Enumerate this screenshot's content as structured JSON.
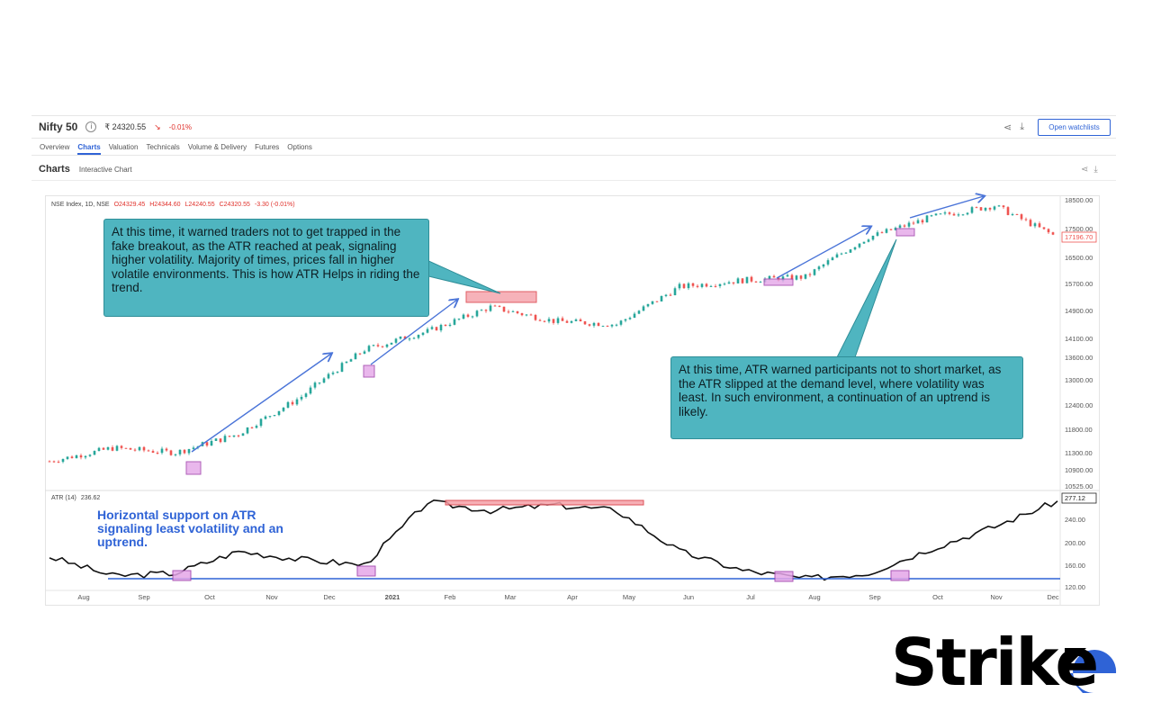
{
  "header": {
    "title": "Nifty 50",
    "price": "₹ 24320.55",
    "change": "-0.01%",
    "watchlist_button": "Open watchlists"
  },
  "tabs": [
    "Overview",
    "Charts",
    "Valuation",
    "Technicals",
    "Volume & Delivery",
    "Futures",
    "Options"
  ],
  "active_tab": "Charts",
  "subheader": {
    "title": "Charts",
    "chip": "Interactive Chart"
  },
  "ohlc": {
    "symbol": "NSE Index, 1D, NSE",
    "open": "O24329.45",
    "high": "H24344.60",
    "low": "L24240.55",
    "close": "C24320.55",
    "change": "-3.30 (-0.01%)"
  },
  "atr_label": {
    "name": "ATR (14)",
    "value": "236.62"
  },
  "callouts": {
    "top": "At this time, it warned traders not to get trapped in the fake breakout, as the ATR reached at peak, signaling higher volatility. Majority of times, prices fall in higher volatile environments. This is how ATR Helps in riding the trend.",
    "bottom": "At this time, ATR warned participants not to short market, as the ATR slipped at the demand level, where volatility was least. In such environment, a continuation of an uptrend is likely."
  },
  "note": "Horizontal support on ATR signaling least volatility and an uptrend.",
  "brand": "Strike",
  "colors": {
    "up": "#26a69a",
    "down": "#ef5350",
    "atr_line": "#111111",
    "support_line": "#2f63d6",
    "callout_bg": "#4fb5c0",
    "box_pink": "#e4a6e8",
    "box_red": "#f5a0a8",
    "arrow": "#4a74d8",
    "brand_accent": "#2f63d6"
  },
  "chart_data": [
    {
      "type": "line",
      "x": [
        "Aug",
        "Sep",
        "Oct",
        "Nov",
        "Dec",
        "2021",
        "Feb",
        "Mar",
        "Apr",
        "May",
        "Jun",
        "Jul",
        "Aug",
        "Sep",
        "Oct",
        "Nov",
        "Dec"
      ],
      "series": [
        {
          "values": [
            11100,
            11400,
            11300,
            11700,
            12600,
            13800,
            14300,
            15000,
            14600,
            14500,
            15600,
            15800,
            15900,
            17200,
            17900,
            18300,
            17196.7
          ]
        }
      ],
      "y_ticks": [
        "18500.00",
        "17500.00",
        "16500.00",
        "15700.00",
        "14900.00",
        "14100.00",
        "13600.00",
        "13000.00",
        "12400.00",
        "11800.00",
        "11300.00",
        "10900.00",
        "10525.00"
      ],
      "y_last": "17196.70",
      "ylim": [
        10525,
        18500
      ]
    },
    {
      "type": "line",
      "x": [
        "Aug",
        "Sep",
        "Oct",
        "Nov",
        "Dec",
        "2021",
        "Feb",
        "Mar",
        "Apr",
        "May",
        "Jun",
        "Jul",
        "Aug",
        "Sep",
        "Oct",
        "Nov",
        "Dec"
      ],
      "series": [
        {
          "values": [
            175,
            140,
            145,
            185,
            170,
            160,
            275,
            260,
            270,
            260,
            185,
            150,
            135,
            145,
            190,
            230,
            277.12
          ]
        }
      ],
      "y_ticks": [
        "280.00",
        "240.00",
        "200.00",
        "160.00",
        "120.00"
      ],
      "y_last": "277.12",
      "ylim": [
        120,
        285
      ]
    }
  ]
}
